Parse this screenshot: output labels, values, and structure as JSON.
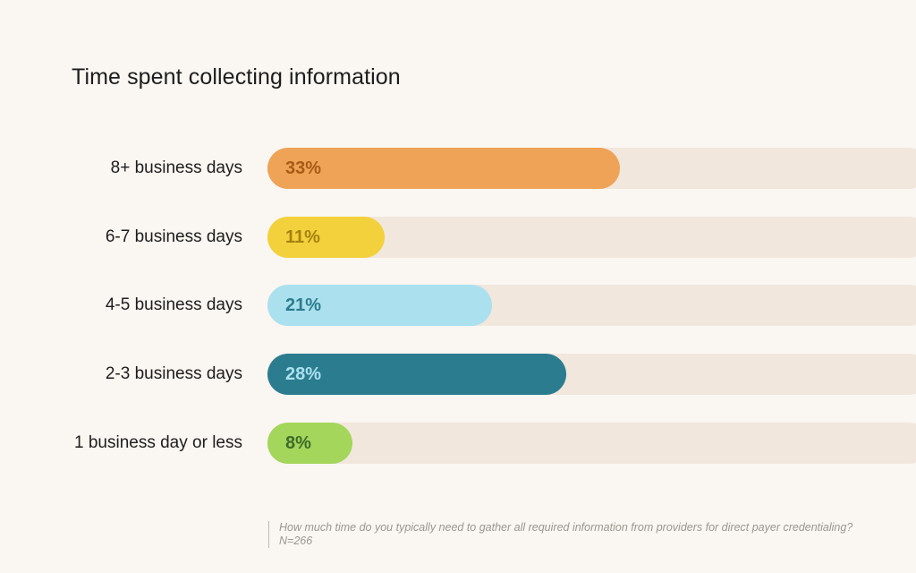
{
  "chart_data": {
    "type": "bar",
    "orientation": "horizontal",
    "title": "Time spent collecting information",
    "categories": [
      "8+ business days",
      "6-7 business days",
      "4-5 business days",
      "2-3 business days",
      "1 business day or less"
    ],
    "values": [
      33,
      11,
      21,
      28,
      8
    ],
    "value_labels": [
      "33%",
      "11%",
      "21%",
      "28%",
      "8%"
    ],
    "unit": "%",
    "xlim": [
      0,
      62
    ],
    "bar_colors": [
      "#efa356",
      "#f2d13c",
      "#abe0ef",
      "#2b7c8e",
      "#a3d65a"
    ],
    "label_colors": [
      "#a85b16",
      "#a6810f",
      "#2b7c8e",
      "#abe0ef",
      "#3e6b2b"
    ],
    "track_color": "#f1e7dd",
    "grid": false,
    "legend": "none"
  },
  "footnote": {
    "question": "How much time do you typically need to gather all required information from providers for direct payer credentialing?",
    "sample": "N=266"
  }
}
